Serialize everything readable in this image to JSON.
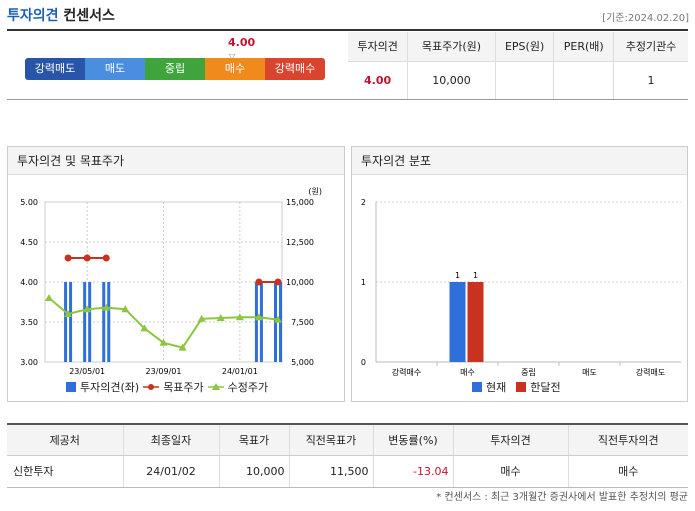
{
  "header": {
    "title_part1": "투자의견",
    "title_part2": "컨센서스",
    "base_date": "[기준:2024.02.20]"
  },
  "scale": {
    "labels": [
      "강력매도",
      "매도",
      "중립",
      "매수",
      "강력매수"
    ],
    "marker_value": "4.00",
    "marker_position": 4.0
  },
  "summary_table": {
    "headers": [
      "투자의견",
      "목표주가(원)",
      "EPS(원)",
      "PER(배)",
      "추정기관수"
    ],
    "values": [
      "4.00",
      "10,000",
      "",
      "",
      "1"
    ]
  },
  "left_chart": {
    "title": "투자의견 및 목표주가",
    "unit": "(원)",
    "legend": [
      "투자의견(좌)",
      "목표주가",
      "수정주가"
    ],
    "colors": {
      "opinion": "#2f6fd9",
      "target": "#c8321e",
      "price": "#8cc63f"
    }
  },
  "right_chart": {
    "title": "투자의견 분포",
    "legend": [
      "현재",
      "한달전"
    ],
    "colors": {
      "current": "#2f6fd9",
      "month_ago": "#c8321e"
    }
  },
  "broker_table": {
    "headers": [
      "제공처",
      "최종일자",
      "목표가",
      "직전목표가",
      "변동률(%)",
      "투자의견",
      "직전투자의견"
    ],
    "rows": [
      [
        "신한투자",
        "24/01/02",
        "10,000",
        "11,500",
        "-13.04",
        "매수",
        "매수"
      ]
    ]
  },
  "footnote": "* 컨센서스 : 최근 3개월간 증권사에서 발표한 추정치의 평균",
  "chart_data": [
    {
      "type": "bar",
      "title": "투자의견 및 목표주가",
      "x_ticks": [
        "23/05/01",
        "23/09/01",
        "24/01/01"
      ],
      "y_left_ticks": [
        "5.00",
        "4.50",
        "4.00",
        "3.50",
        "3.00"
      ],
      "y_left_range": [
        3.0,
        5.0
      ],
      "y_right_ticks": [
        "15,000",
        "12,500",
        "10,000",
        "7,500",
        "5,000"
      ],
      "y_right_range": [
        5000,
        15000
      ],
      "series": [
        {
          "name": "투자의견(좌)",
          "kind": "bar",
          "axis": "left",
          "x": [
            1,
            2,
            3,
            11,
            12
          ],
          "values": [
            4.0,
            4.0,
            4.0,
            4.0,
            4.0
          ]
        },
        {
          "name": "목표주가",
          "kind": "line-marker",
          "axis": "right",
          "x": [
            1,
            2,
            3
          ],
          "values": [
            11500,
            11500,
            11500
          ]
        },
        {
          "name": "목표주가",
          "kind": "line-marker",
          "axis": "right",
          "x": [
            11,
            12
          ],
          "values": [
            10000,
            10000
          ]
        },
        {
          "name": "수정주가",
          "kind": "line",
          "axis": "right",
          "x": [
            0,
            1,
            2,
            3,
            4,
            5,
            6,
            7,
            8,
            9,
            10,
            11,
            12
          ],
          "values": [
            9000,
            8000,
            8300,
            8400,
            8300,
            7100,
            6200,
            5900,
            7700,
            7750,
            7800,
            7800,
            7650
          ]
        }
      ],
      "x_count": 13
    },
    {
      "type": "bar",
      "title": "투자의견 분포",
      "categories": [
        "강력매수",
        "매수",
        "중립",
        "매도",
        "강력매도"
      ],
      "y_ticks": [
        "2",
        "1",
        "0"
      ],
      "ylim": [
        0,
        2
      ],
      "series": [
        {
          "name": "현재",
          "values": [
            0,
            1,
            0,
            0,
            0
          ]
        },
        {
          "name": "한달전",
          "values": [
            0,
            1,
            0,
            0,
            0
          ]
        }
      ]
    }
  ]
}
